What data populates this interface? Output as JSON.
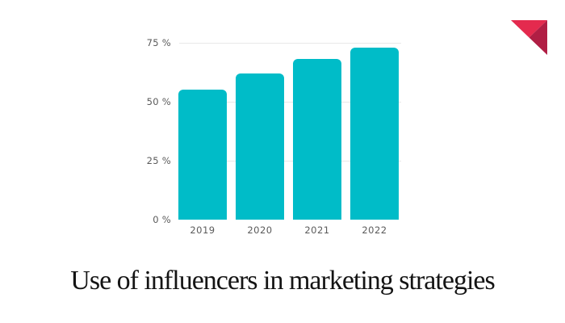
{
  "logo": {
    "name": "red-triangle-logo",
    "color_light": "#e42a4e",
    "color_dark": "#b01e44"
  },
  "title": "Use of influencers in marketing strategies",
  "title_color": "#141414",
  "chart_data": {
    "type": "bar",
    "title": "Use of influencers in marketing strategies",
    "categories": [
      "2019",
      "2020",
      "2021",
      "2022"
    ],
    "values": [
      55,
      62,
      68,
      73
    ],
    "unit": "%",
    "xlabel": "",
    "ylabel": "",
    "ylim": [
      0,
      75
    ],
    "y_ticks": [
      {
        "value": 0,
        "label": "0 %"
      },
      {
        "value": 25,
        "label": "25 %"
      },
      {
        "value": 50,
        "label": "50 %"
      },
      {
        "value": 75,
        "label": "75 %"
      }
    ],
    "grid": true,
    "legend_position": "none",
    "bar_color": "#00bcc8",
    "gridline_color": "#e8e8e8",
    "axis_label_color": "#5a5a5a"
  }
}
